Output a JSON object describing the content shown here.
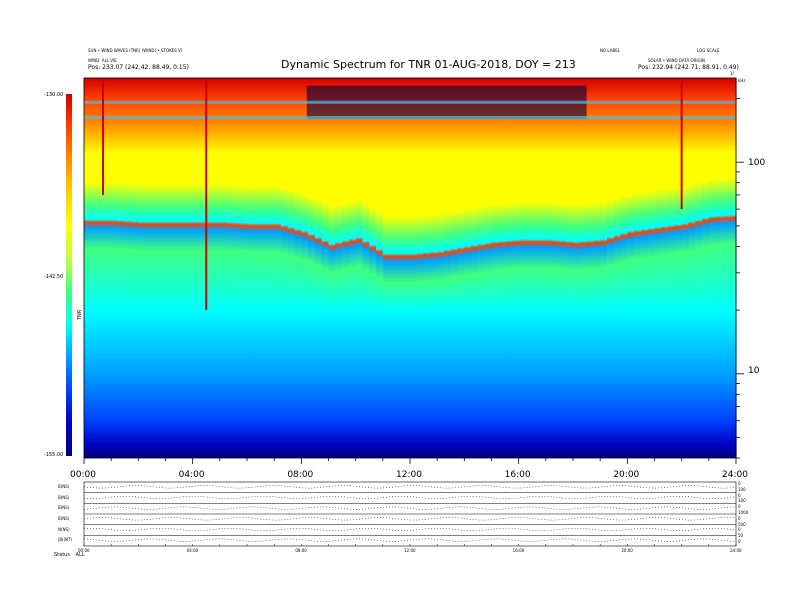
{
  "header": {
    "title": "Dynamic Spectrum for TNR 01-AUG-2018, DOY = 213",
    "meta_left_1": "SUN • WIND WAVES (TNR) (WIND) • STOKES VI",
    "meta_left_2": "WIND: ALL VIE",
    "pos_left": "Pos:   233.07 (242.42, 88.49, 0.15)",
    "meta_mid": "NO LABEL",
    "meta_right_1": "LOG SCALE",
    "meta_right_2": "SOLAR • WIND DATA ORIGIN",
    "pos_right": "Pos:   232.94 (242.71, 88.91, 0.49)",
    "top_right_mark": "1/",
    "axis_unit_right": "kHz",
    "cb_label": "TNR"
  },
  "colorbar": {
    "ticks": [
      "-130.00",
      "-142.50",
      "-155.00"
    ],
    "colors": [
      "#d00000",
      "#ff4000",
      "#ff9000",
      "#ffd000",
      "#ffff00",
      "#c0ff40",
      "#40ff80",
      "#00ffff",
      "#00a0ff",
      "#0040ff",
      "#0000c0",
      "#000080"
    ]
  },
  "chart_data": {
    "type": "heatmap",
    "title": "Dynamic Spectrum for TNR 01-AUG-2018, DOY = 213",
    "xlabel": "",
    "ylabel": "",
    "x_ticks": [
      "00:00",
      "04:00",
      "08:00",
      "12:00",
      "16:00",
      "20:00",
      "24:00"
    ],
    "x_range": [
      0,
      24
    ],
    "y_scale": "log",
    "y_ticks": [
      "100",
      "10"
    ],
    "y_range": [
      4,
      250
    ],
    "z_range": [
      -155,
      -130
    ],
    "bands": [
      {
        "name": "top_dark",
        "y": [
          180,
          250
        ],
        "z": -131
      },
      {
        "name": "upper_blue",
        "y": [
          110,
          180
        ],
        "z": -134
      },
      {
        "name": "cyan_band",
        "y": [
          70,
          110
        ],
        "z": -140
      },
      {
        "name": "green_mid",
        "y": [
          30,
          70
        ],
        "z": -144
      },
      {
        "name": "yellow_low",
        "y": [
          5,
          30
        ],
        "z": -149
      },
      {
        "name": "red_floor",
        "y": [
          4,
          5
        ],
        "z": -154
      }
    ],
    "profile_hours": [
      0,
      1,
      2,
      3,
      4,
      5,
      6,
      7,
      8,
      9,
      10,
      11,
      12,
      13,
      14,
      15,
      16,
      17,
      18,
      19,
      20,
      21,
      22,
      23,
      24
    ],
    "plasma_line_khz": [
      52,
      52,
      51,
      51,
      51,
      51,
      50,
      50,
      46,
      40,
      43,
      36,
      36,
      37,
      39,
      41,
      42,
      42,
      41,
      42,
      46,
      48,
      50,
      54,
      55
    ],
    "bursts": [
      {
        "hour": 4.5,
        "y": [
          20,
          250
        ]
      },
      {
        "hour": 0.7,
        "y": [
          70,
          250
        ]
      },
      {
        "hour": 22.0,
        "y": [
          60,
          250
        ]
      }
    ]
  },
  "lower_panel": {
    "row_labels": [
      "B(NS)",
      "B(NS)",
      "B(NS)",
      "B(NS)",
      "N(NS)",
      "|B|(NT)"
    ],
    "right_labels": [
      "0",
      "100",
      "0",
      "100",
      "0",
      "1000",
      "0",
      "500",
      "0",
      "50",
      "0"
    ],
    "x_ticks": [
      "00:00",
      "04:00",
      "08:00",
      "12:00",
      "16:00",
      "20:00",
      "24:00"
    ],
    "footer_a": "Status",
    "footer_b": "ALL"
  }
}
